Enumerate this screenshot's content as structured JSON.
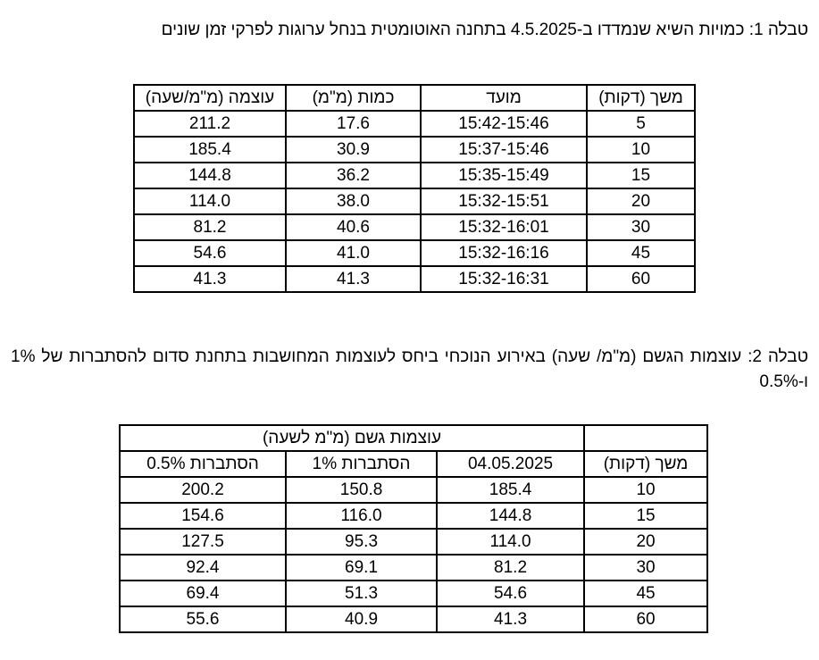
{
  "caption1": "טבלה 1: כמויות השיא שנמדדו ב-4.5.2025 בתחנה האוטומטית בנחל ערוגות לפרקי זמן שונים",
  "table1": {
    "header": [
      "משך (דקות)",
      "מועד",
      "כמות (מ\"מ)",
      "עוצמה (מ\"מ/שעה)"
    ],
    "rows": [
      [
        "5",
        "15:42-15:46",
        "17.6",
        "211.2"
      ],
      [
        "10",
        "15:37-15:46",
        "30.9",
        "185.4"
      ],
      [
        "15",
        "15:35-15:49",
        "36.2",
        "144.8"
      ],
      [
        "20",
        "15:32-15:51",
        "38.0",
        "114.0"
      ],
      [
        "30",
        "15:32-16:01",
        "40.6",
        "81.2"
      ],
      [
        "45",
        "15:32-16:16",
        "41.0",
        "54.6"
      ],
      [
        "60",
        "15:32-16:31",
        "41.3",
        "41.3"
      ]
    ]
  },
  "caption2": "טבלה 2: עוצמות הגשם (מ\"מ/ שעה) באירוע הנוכחי ביחס לעוצמות המחושבות בתחנת סדום להסתברות של 1% ו-0.5%",
  "table2": {
    "group_header": "עוצמות גשם (מ\"מ לשעה)",
    "header": [
      "משך (דקות)",
      "04.05.2025",
      "הסתברות 1%",
      "הסתברות 0.5%"
    ],
    "rows": [
      [
        "10",
        "185.4",
        "150.8",
        "200.2"
      ],
      [
        "15",
        "144.8",
        "116.0",
        "154.6"
      ],
      [
        "20",
        "114.0",
        "95.3",
        "127.5"
      ],
      [
        "30",
        "81.2",
        "69.1",
        "92.4"
      ],
      [
        "45",
        "54.6",
        "51.3",
        "69.4"
      ],
      [
        "60",
        "41.3",
        "40.9",
        "55.6"
      ]
    ]
  }
}
